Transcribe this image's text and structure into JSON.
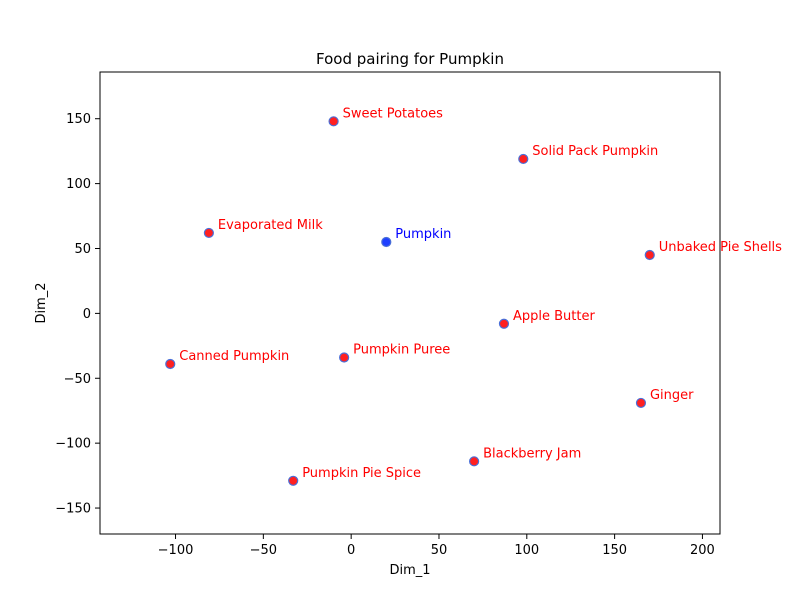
{
  "chart_data": {
    "type": "scatter",
    "title": "Food pairing for Pumpkin",
    "xlabel": "Dim_1",
    "ylabel": "Dim_2",
    "xlim": [
      -143,
      210
    ],
    "ylim": [
      -170,
      186
    ],
    "xticks": [
      -100,
      -50,
      0,
      50,
      100,
      150,
      200
    ],
    "yticks": [
      -150,
      -100,
      -50,
      0,
      50,
      100,
      150
    ],
    "xtick_labels": [
      "−100",
      "−50",
      "0",
      "50",
      "100",
      "150",
      "200"
    ],
    "ytick_labels": [
      "−150",
      "−100",
      "−50",
      "0",
      "50",
      "100",
      "150"
    ],
    "grid": false,
    "colors": {
      "target_marker": "#1f3fff",
      "target_label": "#0000ff",
      "pair_marker": "#ff2020",
      "pair_label": "#ff0000",
      "marker_edge": "#4a6fd8"
    },
    "points": [
      {
        "label": "Pumpkin",
        "x": 20,
        "y": 55,
        "group": "target"
      },
      {
        "label": "Sweet Potatoes",
        "x": -10,
        "y": 148,
        "group": "pair"
      },
      {
        "label": "Solid Pack Pumpkin",
        "x": 98,
        "y": 119,
        "group": "pair"
      },
      {
        "label": "Evaporated Milk",
        "x": -81,
        "y": 62,
        "group": "pair"
      },
      {
        "label": "Unbaked Pie Shells",
        "x": 170,
        "y": 45,
        "group": "pair"
      },
      {
        "label": "Apple Butter",
        "x": 87,
        "y": -8,
        "group": "pair"
      },
      {
        "label": "Pumpkin Puree",
        "x": -4,
        "y": -34,
        "group": "pair"
      },
      {
        "label": "Canned Pumpkin",
        "x": -103,
        "y": -39,
        "group": "pair"
      },
      {
        "label": "Ginger",
        "x": 165,
        "y": -69,
        "group": "pair"
      },
      {
        "label": "Blackberry Jam",
        "x": 70,
        "y": -114,
        "group": "pair"
      },
      {
        "label": "Pumpkin Pie Spice",
        "x": -33,
        "y": -129,
        "group": "pair"
      }
    ]
  }
}
